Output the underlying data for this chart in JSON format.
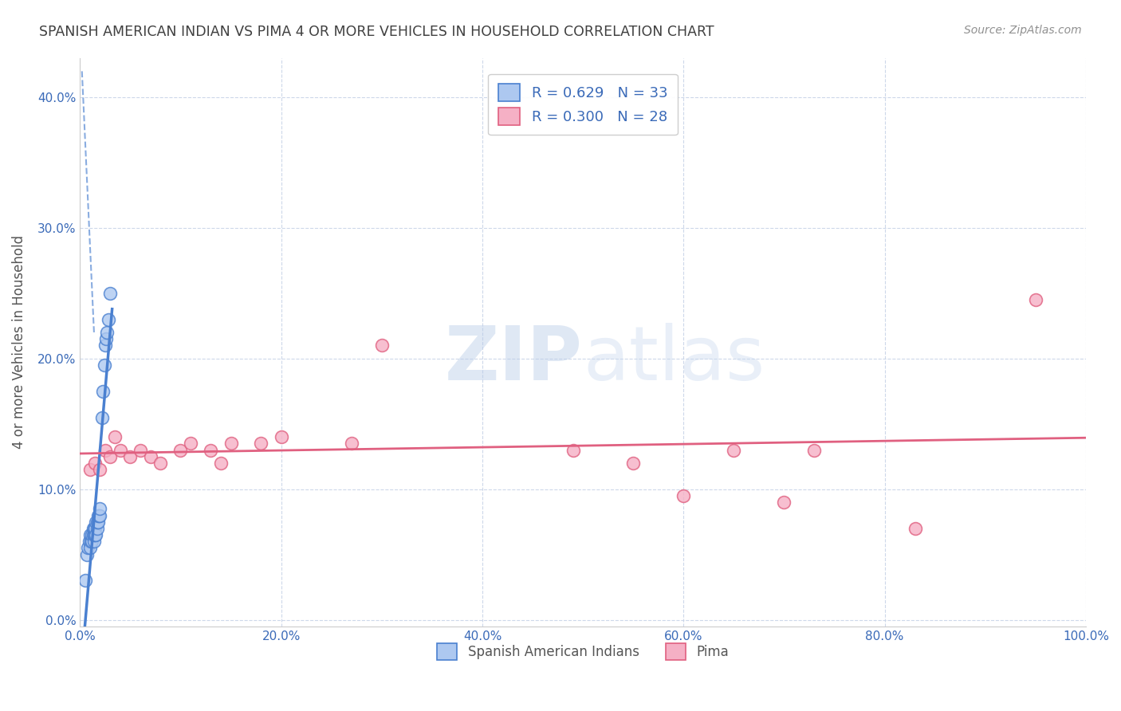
{
  "title": "SPANISH AMERICAN INDIAN VS PIMA 4 OR MORE VEHICLES IN HOUSEHOLD CORRELATION CHART",
  "source": "Source: ZipAtlas.com",
  "ylabel": "4 or more Vehicles in Household",
  "xlim": [
    0,
    1.0
  ],
  "ylim": [
    -0.005,
    0.43
  ],
  "xticks": [
    0.0,
    0.2,
    0.4,
    0.6,
    0.8,
    1.0
  ],
  "xticklabels": [
    "0.0%",
    "20.0%",
    "40.0%",
    "60.0%",
    "80.0%",
    "100.0%"
  ],
  "yticks": [
    0.0,
    0.1,
    0.2,
    0.3,
    0.4
  ],
  "yticklabels": [
    "0.0%",
    "10.0%",
    "20.0%",
    "30.0%",
    "40.0%"
  ],
  "blue_r": 0.629,
  "pink_r": 0.3,
  "blue_n": 33,
  "pink_n": 28,
  "watermark_zip": "ZIP",
  "watermark_atlas": "atlas",
  "blue_color": "#adc8f0",
  "pink_color": "#f5b0c5",
  "blue_line_color": "#4a80d0",
  "pink_line_color": "#e06080",
  "grid_color": "#c8d4e8",
  "title_color": "#404040",
  "source_color": "#909090",
  "legend_text_color": "#3a6ab8",
  "axis_label_color": "#3a6ab8",
  "blue_x": [
    0.005,
    0.007,
    0.008,
    0.009,
    0.01,
    0.01,
    0.011,
    0.012,
    0.012,
    0.013,
    0.013,
    0.014,
    0.014,
    0.014,
    0.015,
    0.015,
    0.016,
    0.016,
    0.017,
    0.017,
    0.018,
    0.018,
    0.019,
    0.02,
    0.02,
    0.022,
    0.023,
    0.024,
    0.025,
    0.026,
    0.027,
    0.028,
    0.03
  ],
  "blue_y": [
    0.03,
    0.05,
    0.055,
    0.06,
    0.055,
    0.065,
    0.06,
    0.06,
    0.065,
    0.065,
    0.07,
    0.06,
    0.065,
    0.07,
    0.065,
    0.07,
    0.065,
    0.075,
    0.07,
    0.075,
    0.075,
    0.08,
    0.08,
    0.08,
    0.085,
    0.155,
    0.175,
    0.195,
    0.21,
    0.215,
    0.22,
    0.23,
    0.25
  ],
  "pink_x": [
    0.01,
    0.015,
    0.02,
    0.025,
    0.03,
    0.035,
    0.04,
    0.05,
    0.06,
    0.07,
    0.08,
    0.1,
    0.11,
    0.13,
    0.14,
    0.15,
    0.18,
    0.2,
    0.27,
    0.3,
    0.49,
    0.55,
    0.6,
    0.65,
    0.7,
    0.73,
    0.83,
    0.95
  ],
  "pink_y": [
    0.115,
    0.12,
    0.115,
    0.13,
    0.125,
    0.14,
    0.13,
    0.125,
    0.13,
    0.125,
    0.12,
    0.13,
    0.135,
    0.13,
    0.12,
    0.135,
    0.135,
    0.14,
    0.135,
    0.21,
    0.13,
    0.12,
    0.095,
    0.13,
    0.09,
    0.13,
    0.07,
    0.245
  ],
  "legend_entries": [
    "Spanish American Indians",
    "Pima"
  ]
}
